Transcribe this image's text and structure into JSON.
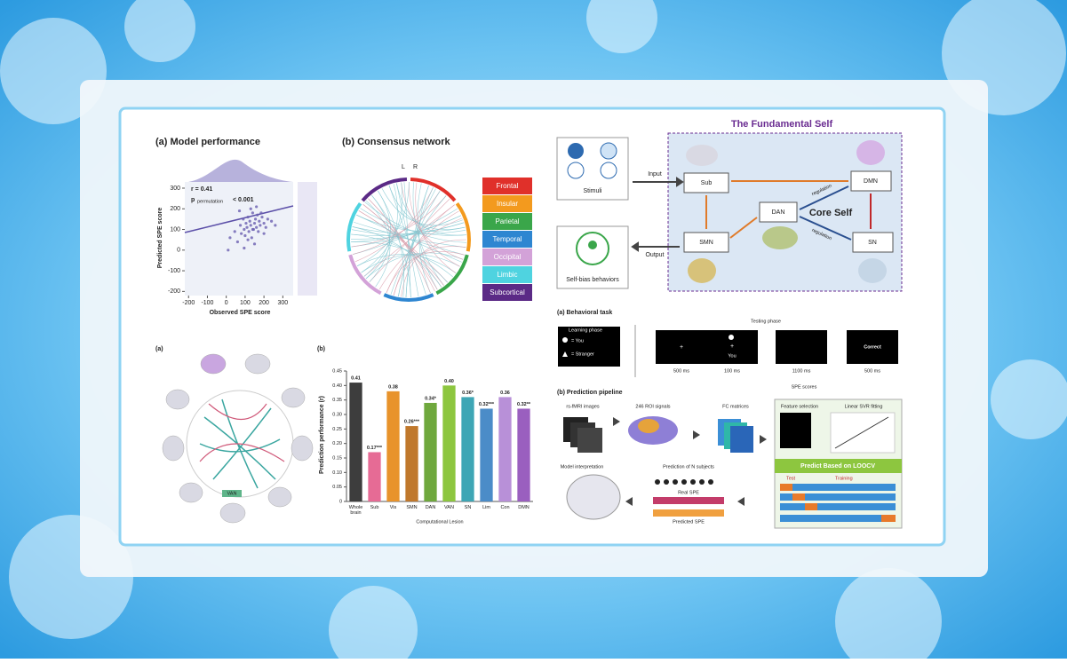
{
  "chart_data": [
    {
      "type": "scatter",
      "title": "(a) Model performance",
      "stat_r": "r = 0.41",
      "stat_p": [
        "p",
        "permutation",
        "< 0.001"
      ],
      "xlabel": "Observed SPE score",
      "ylabel": "Predicted SPE score",
      "color": "#6a5fb0",
      "x": [
        20,
        45,
        60,
        75,
        80,
        90,
        95,
        100,
        105,
        110,
        115,
        120,
        125,
        130,
        135,
        140,
        145,
        150,
        155,
        160,
        165,
        170,
        175,
        180,
        190,
        200,
        210,
        220,
        240,
        260,
        10,
        70,
        130,
        150,
        185,
        115,
        95,
        160,
        200,
        140
      ],
      "values": [
        60,
        90,
        40,
        120,
        80,
        150,
        100,
        70,
        130,
        110,
        160,
        90,
        140,
        120,
        60,
        180,
        100,
        130,
        150,
        110,
        170,
        90,
        140,
        120,
        160,
        130,
        110,
        150,
        140,
        120,
        0,
        190,
        200,
        30,
        180,
        50,
        10,
        210,
        80,
        100
      ],
      "xlim": [
        -220,
        355
      ],
      "ylim": [
        -220,
        330
      ],
      "xticks": [
        -200,
        -100,
        0,
        100,
        200,
        300
      ],
      "yticks": [
        -200,
        -100,
        0,
        100,
        200,
        300
      ]
    },
    {
      "type": "bar",
      "title": "(b)",
      "ylabel": "Prediction performance (r)",
      "xlabel": "Computational Lesion",
      "categories": [
        "Whole brain",
        "Sub",
        "Vis",
        "SMN",
        "DAN",
        "VAN",
        "SN",
        "Lim",
        "Con",
        "DMN"
      ],
      "values": [
        0.41,
        0.17,
        0.38,
        0.26,
        0.34,
        0.4,
        0.36,
        0.32,
        0.36,
        0.32
      ],
      "value_labels": [
        "0.41",
        "0.17***",
        "0.38",
        "0.26***",
        "0.34*",
        "0.40",
        "0.36*",
        "0.32***",
        "0.36",
        "0.32**"
      ],
      "colors": [
        "#3d3d3d",
        "#e66b95",
        "#e8932b",
        "#c0782c",
        "#6fa83d",
        "#8dc63f",
        "#3ea6b5",
        "#4b8cc8",
        "#b890d8",
        "#9a5fbf"
      ],
      "ylim": [
        0,
        0.45
      ],
      "yticks": [
        0,
        0.05,
        {
          "value": 0.1,
          "label": "0.10"
        },
        0.15,
        {
          "value": 0.2,
          "label": "0.20"
        },
        0.25,
        {
          "value": 0.3,
          "label": "0.30"
        },
        0.35,
        {
          "value": 0.4,
          "label": "0.40"
        },
        0.45
      ]
    }
  ],
  "network": {
    "title": "(b) Consensus network",
    "left": "L",
    "right": "R",
    "legend": [
      {
        "name": "Frontal",
        "color": "#e0302a"
      },
      {
        "name": "Insular",
        "color": "#f39a1e"
      },
      {
        "name": "Parietal",
        "color": "#3aa64a"
      },
      {
        "name": "Temporal",
        "color": "#2e86d1"
      },
      {
        "name": "Occipital",
        "color": "#d3a2d8"
      },
      {
        "name": "Limbic",
        "color": "#4fd3e0"
      },
      {
        "name": "Subcortical",
        "color": "#5b2a86"
      }
    ]
  },
  "lesion_network": {
    "label": "(a)",
    "node": "VAN"
  },
  "self_model": {
    "title": "The Fundamental Self",
    "stimuli": "Stimuli",
    "behaviors": "Self-bias behaviors",
    "input": "Input",
    "output": "Output",
    "sub": "Sub",
    "dmn": "DMN",
    "dan": "DAN",
    "smn": "SMN",
    "sn": "SN",
    "core": "Core Self",
    "regulation": [
      "regulation",
      "regulation"
    ]
  },
  "task": {
    "title": "(a) Behavioral task",
    "learning": "Learning phase",
    "you": "= You",
    "stranger": "= Stranger",
    "testing": "Testing phase",
    "fixation": "+",
    "you_label": "You",
    "correct": "Correct",
    "durations": [
      "500 ms",
      "100 ms",
      "1100 ms",
      "500 ms"
    ],
    "spe": "SPE scores"
  },
  "pipeline": {
    "title": "(b) Prediction pipeline",
    "fmri": "rs-fMRI images",
    "roi": "246 ROI signals",
    "fc": "FC matrices",
    "feature": "Feature selection",
    "svr": "Linear SVR fitting",
    "loocv": "Predict Based on LOOCV",
    "interpretation": "Model interpretation",
    "prediction": "Prediction of N subjects",
    "real": "Real SPE",
    "predicted": "Predicted SPE",
    "test": "Test",
    "training": "Training"
  }
}
